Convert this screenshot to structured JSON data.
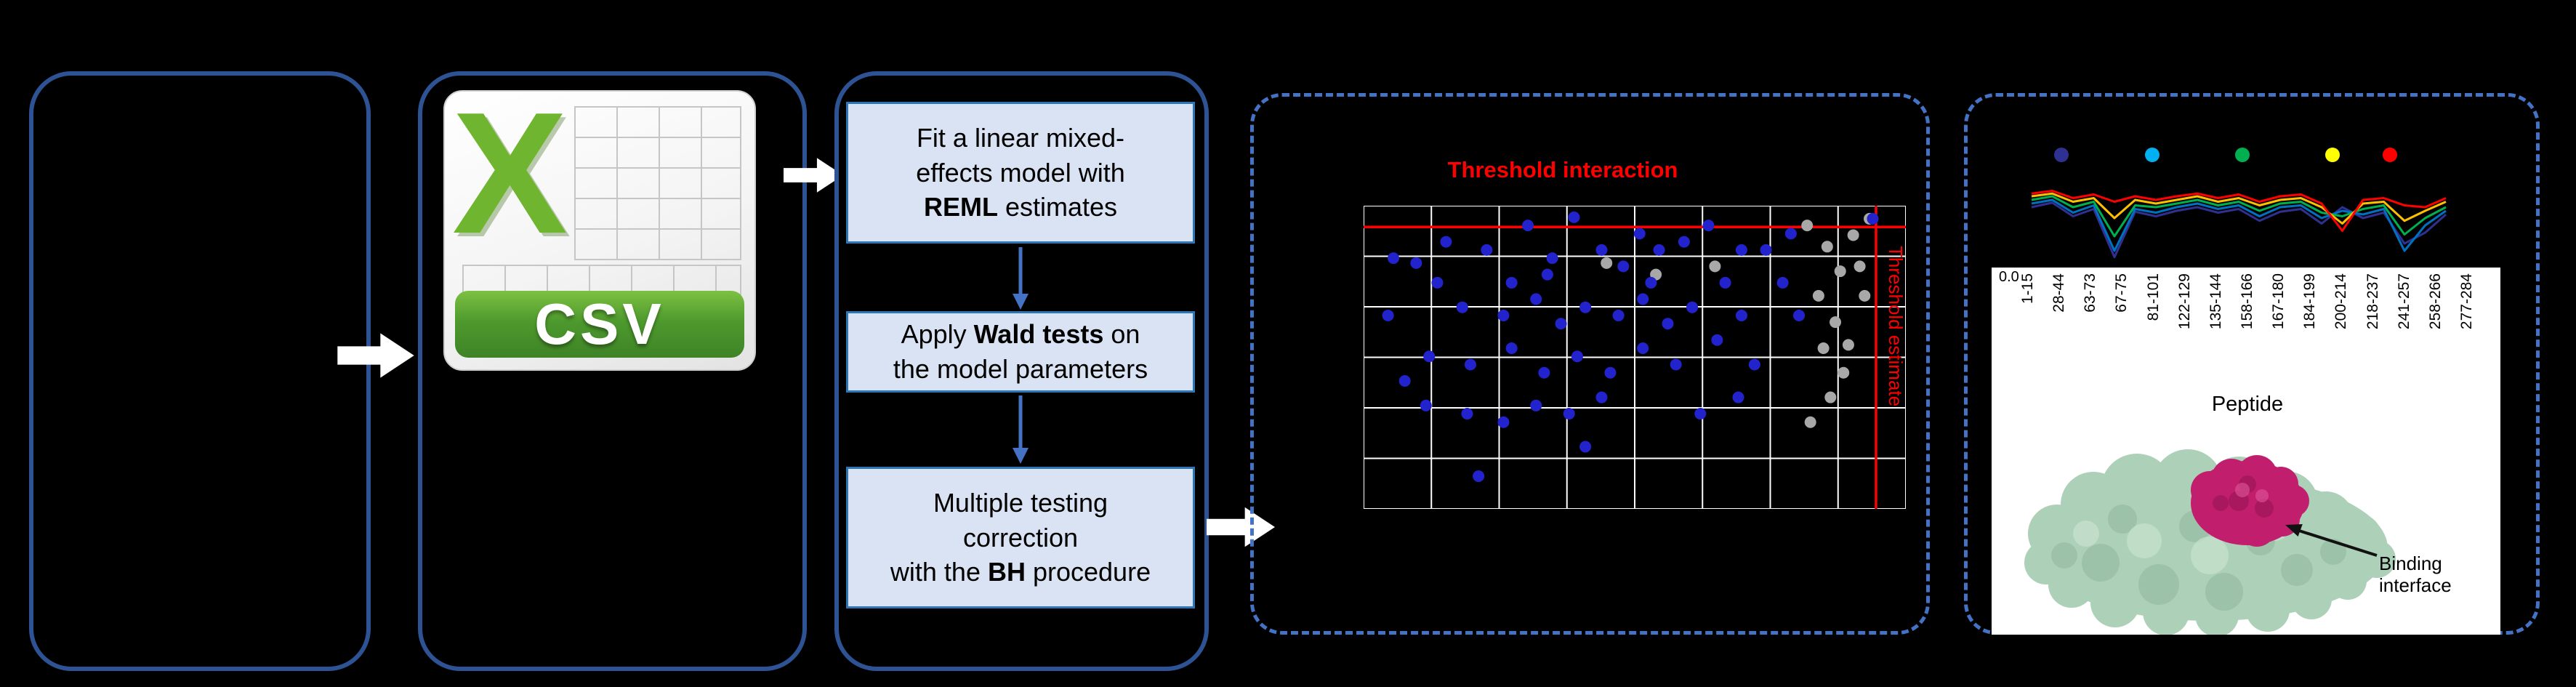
{
  "colors": {
    "background": "#000000",
    "solid_box_border": "#2E5395",
    "dashed_box_border": "#4472C4",
    "step_fill": "#DAE3F3",
    "step_border": "#2E75B6",
    "step_arrow_blue": "#4472C4",
    "flow_arrow_white": "#FFFFFF",
    "threshold_red": "#FF0000",
    "dot_blue": "#2323CD",
    "dot_gray": "#A8A8A8",
    "csv_green": "#4E9A2E",
    "protein_green": "#ADD0B8",
    "protein_magenta": "#C21E6E"
  },
  "csv_icon": {
    "letter": "X",
    "label": "CSV"
  },
  "steps": [
    {
      "segments": [
        {
          "text": "Fit a linear mixed-\neffects model with\n",
          "bold": false
        },
        {
          "text": "REML",
          "bold": true
        },
        {
          "text": " estimates",
          "bold": false
        }
      ]
    },
    {
      "segments": [
        {
          "text": "Apply ",
          "bold": false
        },
        {
          "text": "Wald tests",
          "bold": true
        },
        {
          "text": " on\nthe model parameters",
          "bold": false
        }
      ]
    },
    {
      "segments": [
        {
          "text": "Multiple testing\ncorrection\nwith the ",
          "bold": false
        },
        {
          "text": "BH",
          "bold": true
        },
        {
          "text": " procedure",
          "bold": false
        }
      ]
    }
  ],
  "chart_data": [
    {
      "type": "scatter",
      "title": "Threshold interaction",
      "right_axis_label": "Threshold estimate",
      "grid": {
        "cols": 8,
        "rows": 6,
        "on": true
      },
      "threshold_line_horizontal_pct": 7,
      "threshold_line_vertical_pct": 94.5,
      "series": [
        {
          "name": "blue-points",
          "color": "#2323CD",
          "points": [
            [
              9.7,
              18.9
            ],
            [
              15.2,
              11.9
            ],
            [
              22.7,
              14.6
            ],
            [
              30.3,
              6.5
            ],
            [
              34.8,
              17.3
            ],
            [
              38.8,
              3.8
            ],
            [
              43.9,
              14.6
            ],
            [
              50.9,
              9.2
            ],
            [
              54.5,
              14.6
            ],
            [
              59.1,
              11.9
            ],
            [
              63.6,
              6.5
            ],
            [
              69.7,
              14.6
            ],
            [
              18.2,
              33.5
            ],
            [
              25.8,
              36.2
            ],
            [
              31.8,
              30.8
            ],
            [
              36.4,
              38.9
            ],
            [
              40.9,
              33.5
            ],
            [
              47,
              36.2
            ],
            [
              51.5,
              30.8
            ],
            [
              56.1,
              38.9
            ],
            [
              60.6,
              33.5
            ],
            [
              12.1,
              49.7
            ],
            [
              19.7,
              52.4
            ],
            [
              27.3,
              47
            ],
            [
              33.3,
              55.1
            ],
            [
              39.4,
              49.7
            ],
            [
              45.5,
              55.1
            ],
            [
              51.5,
              47
            ],
            [
              57.6,
              52.4
            ],
            [
              31.8,
              65.9
            ],
            [
              37.9,
              68.6
            ],
            [
              43.9,
              63.2
            ],
            [
              25.8,
              71.4
            ],
            [
              19.1,
              68.6
            ],
            [
              11.5,
              65.9
            ],
            [
              69.7,
              36.2
            ],
            [
              74.2,
              14.6
            ],
            [
              77.3,
              25.4
            ],
            [
              4.5,
              36.2
            ],
            [
              7.6,
              57.8
            ],
            [
              27.3,
              25.4
            ],
            [
              65.2,
              44.3
            ],
            [
              72.1,
              52.4
            ],
            [
              78.8,
              9.2
            ],
            [
              66.7,
              25.4
            ],
            [
              47.9,
              20
            ],
            [
              53,
              25.4
            ],
            [
              33.9,
              22.7
            ],
            [
              21.2,
              89.2
            ],
            [
              62.1,
              68.6
            ],
            [
              69.1,
              63.2
            ],
            [
              13.6,
              25.4
            ],
            [
              40.9,
              79.5
            ],
            [
              80.3,
              36.2
            ],
            [
              5.5,
              17.3
            ],
            [
              93.9,
              4.3
            ]
          ]
        },
        {
          "name": "gray-points",
          "color": "#A8A8A8",
          "points": [
            [
              81.8,
              6.5
            ],
            [
              85.5,
              13.5
            ],
            [
              87.9,
              21.6
            ],
            [
              83.9,
              29.7
            ],
            [
              87,
              38.4
            ],
            [
              84.8,
              47
            ],
            [
              88.5,
              55.1
            ],
            [
              86.1,
              63.2
            ],
            [
              82.4,
              71.4
            ],
            [
              90.3,
              9.7
            ],
            [
              91.5,
              20
            ],
            [
              93.3,
              4.3
            ],
            [
              53.9,
              22.7
            ],
            [
              44.8,
              18.9
            ],
            [
              64.8,
              20
            ],
            [
              89.4,
              45.9
            ],
            [
              92.4,
              29.7
            ]
          ]
        }
      ]
    },
    {
      "type": "line",
      "legend_dot_colors": [
        "#2E3192",
        "#00B0F0",
        "#00B050",
        "#FFFF00",
        "#FF0000"
      ],
      "legend_dot_x": [
        56,
        181,
        305,
        429,
        508
      ],
      "series": [
        {
          "color": "#2E3192",
          "values": [
            40,
            35,
            50,
            42,
            95,
            45,
            50,
            44,
            40,
            46,
            42,
            55,
            45,
            42,
            58,
            40,
            52,
            46,
            80,
            68,
            48
          ]
        },
        {
          "color": "#0070C0",
          "values": [
            36,
            32,
            46,
            38,
            88,
            42,
            46,
            40,
            36,
            42,
            38,
            50,
            40,
            38,
            52,
            44,
            48,
            42,
            88,
            60,
            44
          ]
        },
        {
          "color": "#00B050",
          "values": [
            32,
            28,
            40,
            34,
            72,
            38,
            40,
            36,
            32,
            38,
            34,
            44,
            36,
            34,
            46,
            50,
            42,
            38,
            70,
            52,
            40
          ]
        },
        {
          "color": "#FFC000",
          "values": [
            28,
            25,
            34,
            30,
            52,
            32,
            36,
            32,
            28,
            34,
            30,
            38,
            32,
            30,
            40,
            58,
            36,
            34,
            55,
            44,
            34
          ]
        },
        {
          "color": "#FF0000",
          "values": [
            25,
            22,
            30,
            26,
            34,
            28,
            32,
            28,
            25,
            30,
            26,
            34,
            28,
            26,
            36,
            66,
            32,
            30,
            38,
            40,
            30
          ]
        }
      ],
      "y_tick_label": "0.0",
      "x_tick_labels": [
        "1-15",
        "28-44",
        "63-73",
        "67-75",
        "81-101",
        "122-129",
        "135-144",
        "158-166",
        "167-180",
        "184-199",
        "200-214",
        "218-237",
        "241-257",
        "258-266",
        "277-284"
      ],
      "xlabel": "Peptide"
    }
  ],
  "protein": {
    "annotation": "Binding\ninterface"
  }
}
